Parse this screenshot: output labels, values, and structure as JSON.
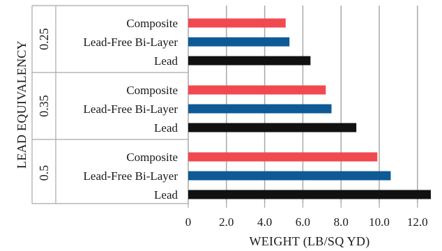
{
  "chart_data": {
    "type": "bar",
    "orientation": "horizontal",
    "xlabel": "WEIGHT (LB/SQ YD)",
    "ylabel": "LEAD EQUIVALENCY",
    "xlim": [
      0,
      12.5
    ],
    "xticks": [
      "0",
      "2.0",
      "4.0",
      "6.0",
      "8.0",
      "10.0",
      "12.0"
    ],
    "grid": "vertical",
    "legend": "none",
    "colors": {
      "Composite": "#f04a50",
      "Lead-Free Bi-Layer": "#0d5a96",
      "Lead": "#111111"
    },
    "groups": [
      {
        "label": "0.25",
        "bars": [
          {
            "category": "Composite",
            "value": 5.1
          },
          {
            "category": "Lead-Free Bi-Layer",
            "value": 5.3
          },
          {
            "category": "Lead",
            "value": 6.4
          }
        ]
      },
      {
        "label": "0.35",
        "bars": [
          {
            "category": "Composite",
            "value": 7.2
          },
          {
            "category": "Lead-Free Bi-Layer",
            "value": 7.5
          },
          {
            "category": "Lead",
            "value": 8.8
          }
        ]
      },
      {
        "label": "0.5",
        "bars": [
          {
            "category": "Composite",
            "value": 9.9
          },
          {
            "category": "Lead-Free Bi-Layer",
            "value": 10.6
          },
          {
            "category": "Lead",
            "value": 12.7
          }
        ]
      }
    ]
  }
}
